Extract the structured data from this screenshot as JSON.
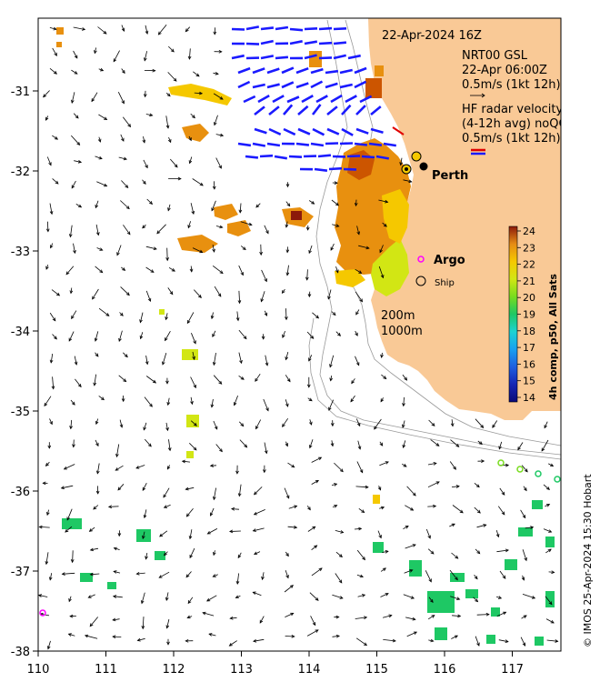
{
  "map": {
    "title": "22-Apr-2024 16Z",
    "model_label": "NRT00 GSL",
    "model_time": "22-Apr 06:00Z",
    "model_scale": "0.5m/s (1kt 12h)",
    "radar_label_1": "HF radar velocity",
    "radar_label_2": "(4-12h avg) noQC",
    "radar_scale": "0.5m/s (1kt 12h)",
    "city": "Perth",
    "argo_label": "Argo",
    "ship_label": "Ship",
    "isobath_1": "200m",
    "isobath_2": "1000m",
    "credit": "© IMOS 25-Apr-2024 15:30 Hobart",
    "colorbar_title": "4h comp, p50, All Sats",
    "colorbar_ticks": [
      "14",
      "15",
      "16",
      "17",
      "18",
      "19",
      "20",
      "21",
      "22",
      "23",
      "24"
    ],
    "x_ticks": [
      "110",
      "111",
      "112",
      "113",
      "114",
      "115",
      "116",
      "117"
    ],
    "y_ticks": [
      "-31",
      "-32",
      "-33",
      "-34",
      "-35",
      "-36",
      "-37",
      "-38"
    ],
    "colors": {
      "land": "#f9c996",
      "radar_arrow": "#1a1aff",
      "argo": "#ff00ff",
      "sst_scale": [
        "#0a0a78",
        "#1626b4",
        "#1f5fe0",
        "#19a0f0",
        "#1ed2d2",
        "#1ec864",
        "#78dc1e",
        "#d2e614",
        "#f5c800",
        "#e68c14",
        "#cc5500",
        "#8c1a0a"
      ]
    }
  }
}
